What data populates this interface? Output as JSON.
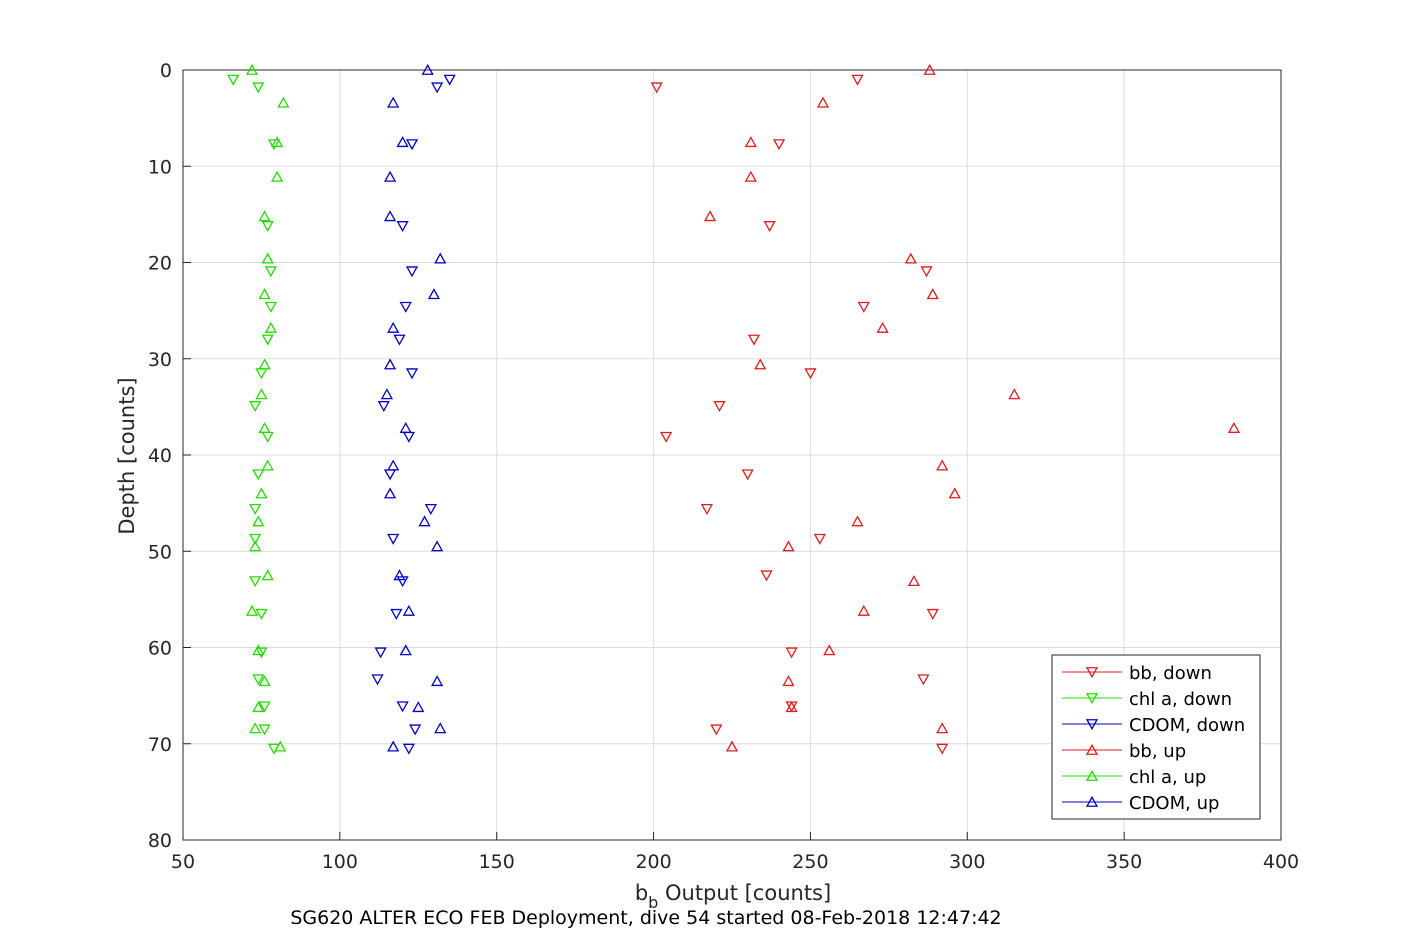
{
  "chart_data": {
    "type": "scatter",
    "title": "",
    "caption": "SG620 ALTER ECO FEB Deployment, dive 54 started 08-Feb-2018 12:47:42",
    "xlabel": {
      "main": "b",
      "sub": "b",
      "rest": " Output [counts]"
    },
    "ylabel": "Depth [counts]",
    "xlim": [
      50,
      400
    ],
    "ylim": [
      0,
      80
    ],
    "y_reversed": true,
    "x_ticks": [
      "50",
      "100",
      "150",
      "200",
      "250",
      "300",
      "350",
      "400"
    ],
    "y_ticks": [
      "0",
      "10",
      "20",
      "30",
      "40",
      "50",
      "60",
      "70",
      "80"
    ],
    "grid": true,
    "legend_position": "bottom-right",
    "series": [
      {
        "name": "bb, down",
        "color": "#e41a1c",
        "marker": "triangle-down",
        "points": [
          [
            201,
            1.8
          ],
          [
            265,
            1
          ],
          [
            240,
            7.7
          ],
          [
            237,
            16.2
          ],
          [
            287,
            20.9
          ],
          [
            267,
            24.6
          ],
          [
            232,
            28
          ],
          [
            250,
            31.5
          ],
          [
            221,
            34.9
          ],
          [
            204,
            38.1
          ],
          [
            230,
            42
          ],
          [
            217,
            45.6
          ],
          [
            253,
            48.7
          ],
          [
            236,
            52.5
          ],
          [
            289,
            56.5
          ],
          [
            244,
            60.5
          ],
          [
            286,
            63.3
          ],
          [
            244,
            66.1
          ],
          [
            220,
            68.5
          ],
          [
            292,
            70.5
          ]
        ]
      },
      {
        "name": "chl a, down",
        "color": "#22dd00",
        "marker": "triangle-down",
        "points": [
          [
            66,
            1
          ],
          [
            74,
            1.8
          ],
          [
            79,
            7.7
          ],
          [
            77,
            16.2
          ],
          [
            78,
            20.9
          ],
          [
            78,
            24.6
          ],
          [
            77,
            28
          ],
          [
            75,
            31.5
          ],
          [
            73,
            34.9
          ],
          [
            77,
            38.1
          ],
          [
            74,
            42
          ],
          [
            73,
            45.6
          ],
          [
            73,
            48.7
          ],
          [
            73,
            53.1
          ],
          [
            75,
            56.5
          ],
          [
            75,
            60.5
          ],
          [
            74,
            63.3
          ],
          [
            76,
            66.1
          ],
          [
            76,
            68.5
          ],
          [
            79,
            70.5
          ]
        ]
      },
      {
        "name": "CDOM, down",
        "color": "#0000cc",
        "marker": "triangle-down",
        "points": [
          [
            135,
            1
          ],
          [
            131,
            1.8
          ],
          [
            123,
            7.7
          ],
          [
            120,
            16.2
          ],
          [
            123,
            20.9
          ],
          [
            121,
            24.6
          ],
          [
            119,
            28
          ],
          [
            123,
            31.5
          ],
          [
            114,
            34.9
          ],
          [
            122,
            38.1
          ],
          [
            116,
            42
          ],
          [
            129,
            45.6
          ],
          [
            117,
            48.7
          ],
          [
            120,
            53.1
          ],
          [
            118,
            56.5
          ],
          [
            113,
            60.5
          ],
          [
            112,
            63.3
          ],
          [
            120,
            66.1
          ],
          [
            124,
            68.5
          ],
          [
            122,
            70.5
          ]
        ]
      },
      {
        "name": "bb, up",
        "color": "#e41a1c",
        "marker": "triangle-up",
        "points": [
          [
            288,
            0
          ],
          [
            254,
            3.4
          ],
          [
            231,
            7.5
          ],
          [
            231,
            11.1
          ],
          [
            218,
            15.2
          ],
          [
            282,
            19.6
          ],
          [
            289,
            23.3
          ],
          [
            273,
            26.8
          ],
          [
            234,
            30.6
          ],
          [
            315,
            33.7
          ],
          [
            385,
            37.2
          ],
          [
            292,
            41.1
          ],
          [
            296,
            44
          ],
          [
            265,
            46.9
          ],
          [
            243,
            49.5
          ],
          [
            283,
            53.1
          ],
          [
            267,
            56.2
          ],
          [
            256,
            60.3
          ],
          [
            243,
            63.5
          ],
          [
            244,
            66.2
          ],
          [
            292,
            68.4
          ],
          [
            225,
            70.3
          ]
        ]
      },
      {
        "name": "chl a, up",
        "color": "#22dd00",
        "marker": "triangle-up",
        "points": [
          [
            72,
            0
          ],
          [
            82,
            3.4
          ],
          [
            80,
            7.5
          ],
          [
            80,
            11.1
          ],
          [
            76,
            15.2
          ],
          [
            77,
            19.6
          ],
          [
            76,
            23.3
          ],
          [
            78,
            26.8
          ],
          [
            76,
            30.6
          ],
          [
            75,
            33.7
          ],
          [
            76,
            37.2
          ],
          [
            77,
            41.1
          ],
          [
            75,
            44
          ],
          [
            74,
            46.9
          ],
          [
            73,
            49.5
          ],
          [
            77,
            52.5
          ],
          [
            72,
            56.2
          ],
          [
            74,
            60.3
          ],
          [
            76,
            63.5
          ],
          [
            74,
            66.2
          ],
          [
            73,
            68.4
          ],
          [
            81,
            70.3
          ]
        ]
      },
      {
        "name": "CDOM, up",
        "color": "#0000cc",
        "marker": "triangle-up",
        "points": [
          [
            128,
            0
          ],
          [
            117,
            3.4
          ],
          [
            120,
            7.5
          ],
          [
            116,
            11.1
          ],
          [
            116,
            15.2
          ],
          [
            132,
            19.6
          ],
          [
            130,
            23.3
          ],
          [
            117,
            26.8
          ],
          [
            116,
            30.6
          ],
          [
            115,
            33.7
          ],
          [
            121,
            37.2
          ],
          [
            117,
            41.1
          ],
          [
            116,
            44
          ],
          [
            127,
            46.9
          ],
          [
            131,
            49.5
          ],
          [
            119,
            52.5
          ],
          [
            122,
            56.2
          ],
          [
            121,
            60.3
          ],
          [
            131,
            63.5
          ],
          [
            125,
            66.2
          ],
          [
            132,
            68.4
          ],
          [
            117,
            70.3
          ]
        ]
      }
    ]
  }
}
